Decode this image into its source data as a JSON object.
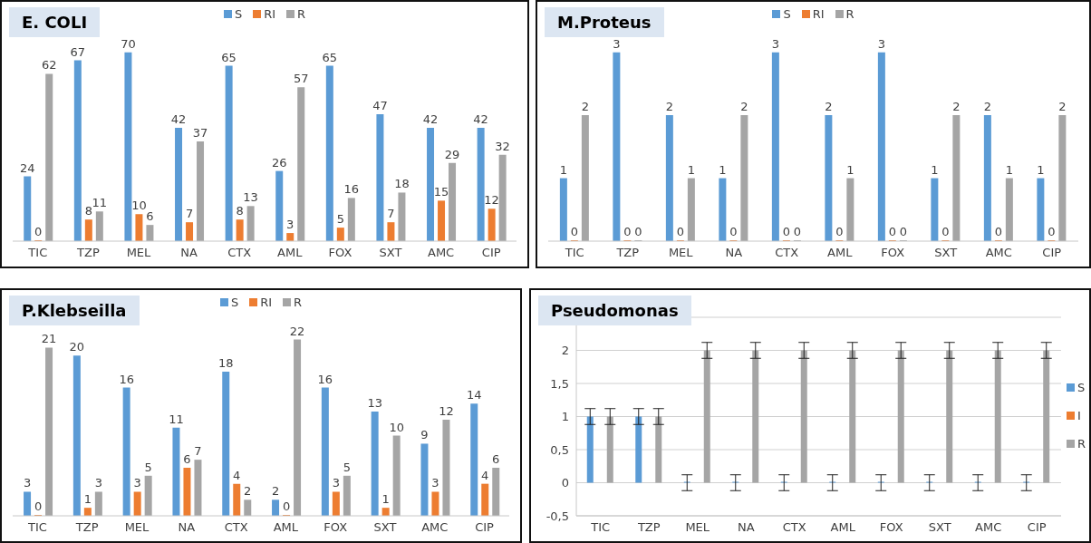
{
  "chart_data": [
    {
      "type": "bar",
      "title": "E. COLI",
      "categories": [
        "TIC",
        "TZP",
        "MEL",
        "NA",
        "CTX",
        "AML",
        "FOX",
        "SXT",
        "AMC",
        "CIP"
      ],
      "data_labels": true,
      "legend": "top",
      "tick_labels": "x",
      "grid": false,
      "series": [
        {
          "name": "S",
          "color": "#5b9bd5",
          "values": [
            24,
            67,
            70,
            42,
            65,
            26,
            65,
            47,
            42,
            42
          ]
        },
        {
          "name": "RI",
          "color": "#ed7d31",
          "values": [
            0,
            8,
            10,
            7,
            8,
            3,
            5,
            7,
            15,
            12
          ]
        },
        {
          "name": "R",
          "color": "#a5a5a5",
          "values": [
            62,
            11,
            6,
            37,
            13,
            57,
            16,
            18,
            29,
            32
          ]
        }
      ]
    },
    {
      "type": "bar",
      "title": "M.Proteus",
      "categories": [
        "TIC",
        "TZP",
        "MEL",
        "NA",
        "CTX",
        "AML",
        "FOX",
        "SXT",
        "AMC",
        "CIP"
      ],
      "data_labels": true,
      "legend": "top",
      "tick_labels": "x",
      "grid": false,
      "series": [
        {
          "name": "S",
          "color": "#5b9bd5",
          "values": [
            1,
            3,
            2,
            1,
            3,
            2,
            3,
            1,
            2,
            1
          ]
        },
        {
          "name": "RI",
          "color": "#ed7d31",
          "values": [
            0,
            0,
            0,
            0,
            0,
            0,
            0,
            0,
            0,
            0
          ]
        },
        {
          "name": "R",
          "color": "#a5a5a5",
          "values": [
            2,
            0,
            1,
            2,
            0,
            1,
            0,
            2,
            1,
            2
          ]
        }
      ]
    },
    {
      "type": "bar",
      "title": "P.Klebseilla",
      "categories": [
        "TIC",
        "TZP",
        "MEL",
        "NA",
        "CTX",
        "AML",
        "FOX",
        "SXT",
        "AMC",
        "CIP"
      ],
      "data_labels": true,
      "legend": "top",
      "tick_labels": "x",
      "grid": false,
      "series": [
        {
          "name": "S",
          "color": "#5b9bd5",
          "values": [
            3,
            20,
            16,
            11,
            18,
            2,
            16,
            13,
            9,
            14
          ]
        },
        {
          "name": "RI",
          "color": "#ed7d31",
          "values": [
            0,
            1,
            3,
            6,
            4,
            0,
            3,
            1,
            3,
            4
          ]
        },
        {
          "name": "R",
          "color": "#a5a5a5",
          "values": [
            21,
            3,
            5,
            7,
            2,
            22,
            5,
            10,
            12,
            6
          ]
        }
      ]
    },
    {
      "type": "bar",
      "title": "Pseudomonas",
      "categories": [
        "TIC",
        "TZP",
        "MEL",
        "NA",
        "CTX",
        "AML",
        "FOX",
        "SXT",
        "AMC",
        "CIP"
      ],
      "legend": "right",
      "grid": "y",
      "ylim": [
        -0.5,
        2.5
      ],
      "yticks": [
        {
          "value": -0.5,
          "label": "-0,5"
        },
        0,
        {
          "value": 0.5,
          "label": "0,5"
        },
        1,
        {
          "value": 1.5,
          "label": "1,5"
        },
        2,
        {
          "value": 2.5,
          "label": null
        }
      ],
      "series": [
        {
          "name": "S",
          "color": "#5b9bd5",
          "values": [
            1,
            1,
            0,
            0,
            0,
            0,
            0,
            0,
            0,
            0
          ],
          "errors": [
            0.12,
            0.12,
            0.12,
            0.12,
            0.12,
            0.12,
            0.12,
            0.12,
            0.12,
            0.12
          ]
        },
        {
          "name": "I",
          "color": "#ed7d31",
          "values": [
            null,
            null,
            null,
            null,
            null,
            null,
            null,
            null,
            null,
            null
          ]
        },
        {
          "name": "R",
          "color": "#a5a5a5",
          "values": [
            1,
            1,
            2,
            2,
            2,
            2,
            2,
            2,
            2,
            2
          ],
          "errors": [
            0.12,
            0.12,
            0.12,
            0.12,
            0.12,
            0.12,
            0.12,
            0.12,
            0.12,
            0.12
          ]
        }
      ]
    }
  ]
}
